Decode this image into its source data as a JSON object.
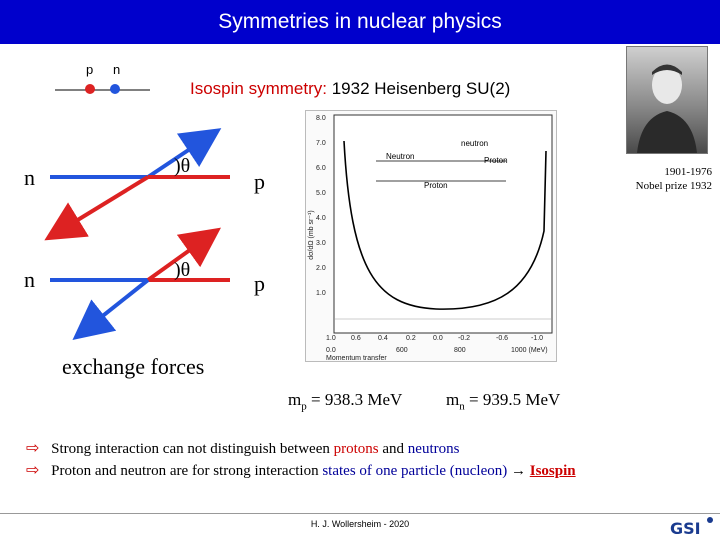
{
  "title": "Symmetries in nuclear physics",
  "isospin": {
    "part1": "Isospin symmetry:",
    "part2": " 1932 Heisenberg SU(2)"
  },
  "levels": {
    "p_label": "p",
    "n_label": "n"
  },
  "diagram": {
    "n1": "n",
    "n2": "n",
    "p1": "p",
    "p2": "p",
    "theta1": ")θ",
    "theta2": ")θ",
    "caption": "exchange forces"
  },
  "colors": {
    "title_bg": "#0000cc",
    "proton": "#dd2222",
    "neutron": "#2255dd",
    "accent_red": "#cc0000"
  },
  "plot": {
    "yaxis_label": "dσ/dΩ (mb sr⁻¹)",
    "xaxis_label": "Momentum transfer",
    "y_ticks": [
      "8.0",
      "7.0",
      "6.0",
      "5.0",
      "4.0",
      "3.0",
      "2.0",
      "1.0"
    ],
    "x_ticks_top": [
      "1.0",
      "0.6",
      "0.4",
      "0.2",
      "0.0",
      "-0.2",
      "-0.6",
      "-1.0"
    ],
    "x_ticks_bottom": [
      "0.0",
      "600",
      "800",
      "1000 (MeV)"
    ],
    "labels": {
      "neutron_left": "Neutron",
      "neutron": "neutron",
      "proton": "Proton",
      "proton_small": "Proton"
    }
  },
  "portrait": {
    "years": "1901-1976",
    "nobel": "Nobel prize 1932"
  },
  "masses": {
    "mp_prefix": "m",
    "mp_sub": "p",
    "mp_value": " = 938.3 MeV",
    "mn_prefix": "m",
    "mn_sub": "n",
    "mn_value": " = 939.5 MeV"
  },
  "bullets": {
    "arrow": "⇨",
    "b1_a": "Strong interaction can not distinguish between ",
    "b1_b": "protons",
    "b1_c": " and ",
    "b1_d": "neutrons",
    "b2_a": "Proton and neutron are for strong interaction ",
    "b2_b": "states of one particle (nucleon)",
    "b2_c": " → ",
    "b2_d": "Isospin"
  },
  "footer": "H. J. Wollersheim - 2020",
  "logo": "GSI"
}
